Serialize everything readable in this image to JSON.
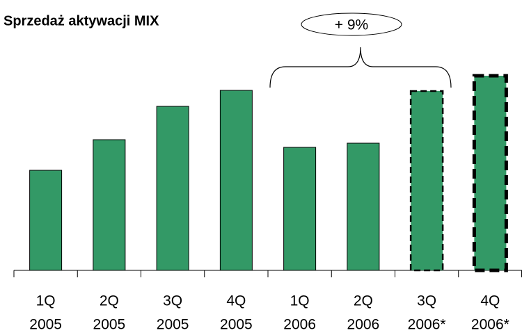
{
  "chart_data": {
    "type": "bar",
    "title": "Sprzedaż aktywacji MIX",
    "categories": [
      [
        "1Q",
        "2005"
      ],
      [
        "2Q",
        "2005"
      ],
      [
        "3Q",
        "2005"
      ],
      [
        "4Q",
        "2005"
      ],
      [
        "1Q",
        "2006"
      ],
      [
        "2Q",
        "2006"
      ],
      [
        "3Q",
        "2006*"
      ],
      [
        "4Q",
        "2006*"
      ]
    ],
    "values": [
      144,
      188,
      236,
      259,
      177,
      183,
      258,
      280
    ],
    "color": "#339966",
    "outline_styles": [
      "solid",
      "solid",
      "solid",
      "solid",
      "solid",
      "solid",
      "dashed",
      "dashed-bold"
    ],
    "ylim": [
      0,
      300
    ],
    "annotation": "+ 9%"
  }
}
